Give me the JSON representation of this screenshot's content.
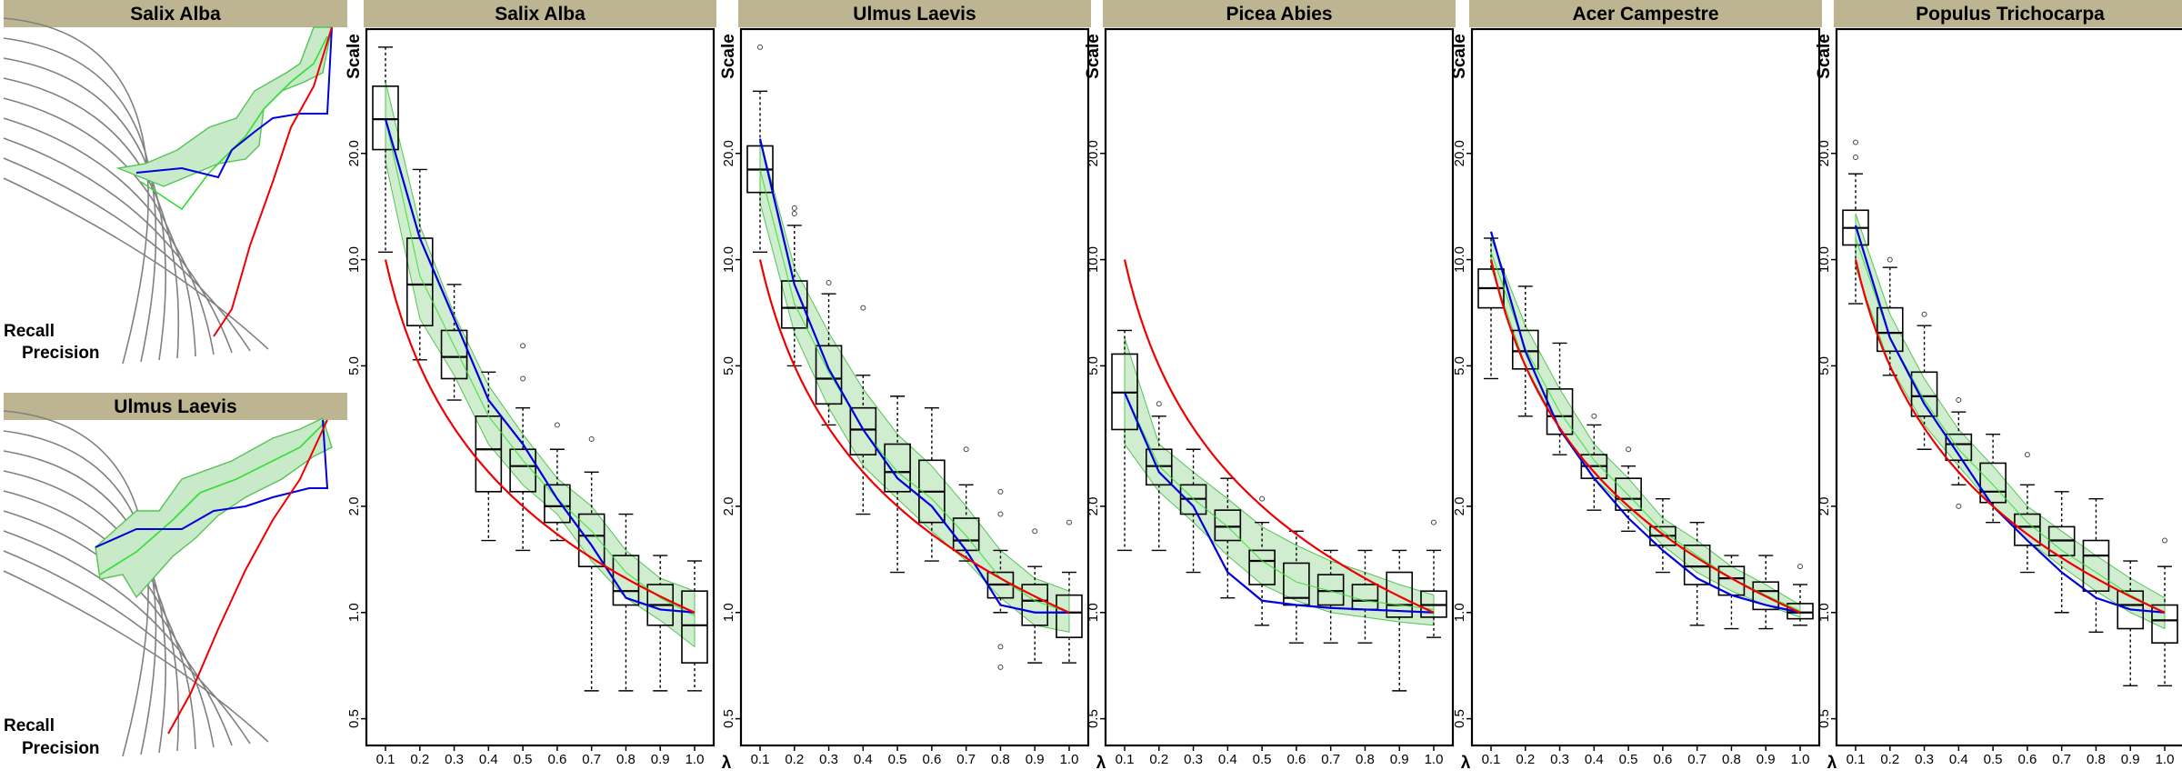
{
  "left_panels": [
    {
      "title": "Salix Alba",
      "ylabel": "Recall",
      "xlabel": "Precision"
    },
    {
      "title": "Ulmus Laevis",
      "ylabel": "Recall",
      "xlabel": "Precision"
    }
  ],
  "colors": {
    "header": "#bdb591",
    "band": "#c8eac8",
    "band_stroke": "#55c455",
    "inner_line": "#33dd33",
    "blue": "#0000dd",
    "red": "#ee0000",
    "grey": "#808080",
    "box": "#000000"
  },
  "chart_data": [
    {
      "type": "box",
      "title": "Salix Alba",
      "ylabel": "Scale",
      "xlabel": "λ",
      "categories": [
        "0.1",
        "0.2",
        "0.3",
        "0.4",
        "0.5",
        "0.6",
        "0.7",
        "0.8",
        "0.9",
        "1.0"
      ],
      "yscale": "log",
      "ylim": [
        0.42,
        45
      ],
      "yticks": [
        "0.5",
        "1.0",
        "2.0",
        "5.0",
        "10.0",
        "20.0"
      ],
      "boxes": [
        {
          "whislo": 10.5,
          "q1": 20.5,
          "med": 25,
          "q3": 31,
          "whishi": 40,
          "fliers": []
        },
        {
          "whislo": 5.2,
          "q1": 6.5,
          "med": 8.5,
          "q3": 11.5,
          "whishi": 18,
          "fliers": []
        },
        {
          "whislo": 4.0,
          "q1": 4.6,
          "med": 5.3,
          "q3": 6.3,
          "whishi": 8.5,
          "fliers": []
        },
        {
          "whislo": 1.6,
          "q1": 2.2,
          "med": 2.9,
          "q3": 3.6,
          "whishi": 4.8,
          "fliers": []
        },
        {
          "whislo": 1.5,
          "q1": 2.2,
          "med": 2.6,
          "q3": 2.9,
          "whishi": 3.8,
          "fliers": [
            4.6,
            5.7
          ]
        },
        {
          "whislo": 1.6,
          "q1": 1.8,
          "med": 2.0,
          "q3": 2.3,
          "whishi": 2.9,
          "fliers": [
            3.4
          ]
        },
        {
          "whislo": 0.6,
          "q1": 1.35,
          "med": 1.65,
          "q3": 1.9,
          "whishi": 2.5,
          "fliers": [
            3.1
          ]
        },
        {
          "whislo": 0.6,
          "q1": 1.05,
          "med": 1.15,
          "q3": 1.45,
          "whishi": 1.9,
          "fliers": []
        },
        {
          "whislo": 0.6,
          "q1": 0.92,
          "med": 1.05,
          "q3": 1.2,
          "whishi": 1.45,
          "fliers": []
        },
        {
          "whislo": 0.6,
          "q1": 0.72,
          "med": 0.92,
          "q3": 1.15,
          "whishi": 1.4,
          "fliers": []
        }
      ],
      "band_lower": [
        19,
        6.8,
        4.7,
        3.0,
        2.3,
        1.9,
        1.4,
        1.1,
        0.95,
        0.8
      ],
      "band_upper": [
        32,
        12.5,
        7.0,
        4.4,
        3.2,
        2.4,
        2.0,
        1.5,
        1.25,
        1.15
      ],
      "green_line": [
        25,
        9.0,
        5.7,
        3.6,
        2.7,
        2.1,
        1.7,
        1.3,
        1.1,
        0.98
      ],
      "blue_line": [
        25,
        11.5,
        6.8,
        4.0,
        3.0,
        2.1,
        1.55,
        1.1,
        1.02,
        1.0
      ],
      "red_curve": {
        "from": 0.1,
        "to": 1.0,
        "value_at_start": 10.0,
        "value_at_end": 1.0
      }
    },
    {
      "type": "box",
      "title": "Ulmus Laevis",
      "ylabel": "Scale",
      "xlabel": "λ",
      "categories": [
        "0.1",
        "0.2",
        "0.3",
        "0.4",
        "0.5",
        "0.6",
        "0.7",
        "0.8",
        "0.9",
        "1.0"
      ],
      "yscale": "log",
      "ylim": [
        0.42,
        45
      ],
      "yticks": [
        "0.5",
        "1.0",
        "2.0",
        "5.0",
        "10.0",
        "20.0"
      ],
      "boxes": [
        {
          "whislo": 10.5,
          "q1": 15.5,
          "med": 18,
          "q3": 21,
          "whishi": 30,
          "fliers": [
            40
          ]
        },
        {
          "whislo": 5.0,
          "q1": 6.4,
          "med": 7.3,
          "q3": 8.7,
          "whishi": 12.5,
          "fliers": [
            13.5,
            14.0
          ]
        },
        {
          "whislo": 3.4,
          "q1": 3.9,
          "med": 4.6,
          "q3": 5.7,
          "whishi": 8.0,
          "fliers": [
            8.6
          ]
        },
        {
          "whislo": 1.9,
          "q1": 2.8,
          "med": 3.3,
          "q3": 3.8,
          "whishi": 4.7,
          "fliers": [
            7.3
          ]
        },
        {
          "whislo": 1.3,
          "q1": 2.2,
          "med": 2.5,
          "q3": 3.0,
          "whishi": 4.1,
          "fliers": []
        },
        {
          "whislo": 1.4,
          "q1": 1.8,
          "med": 2.2,
          "q3": 2.7,
          "whishi": 3.8,
          "fliers": []
        },
        {
          "whislo": 1.4,
          "q1": 1.5,
          "med": 1.6,
          "q3": 1.85,
          "whishi": 2.3,
          "fliers": [
            2.9
          ]
        },
        {
          "whislo": 1.0,
          "q1": 1.1,
          "med": 1.2,
          "q3": 1.3,
          "whishi": 1.5,
          "fliers": [
            0.7,
            0.8,
            1.9,
            2.2
          ]
        },
        {
          "whislo": 0.72,
          "q1": 0.92,
          "med": 1.08,
          "q3": 1.2,
          "whishi": 1.35,
          "fliers": [
            1.7
          ]
        },
        {
          "whislo": 0.72,
          "q1": 0.85,
          "med": 1.0,
          "q3": 1.12,
          "whishi": 1.3,
          "fliers": [
            1.8
          ]
        }
      ],
      "band_lower": [
        14.5,
        6.2,
        3.8,
        2.6,
        2.1,
        1.7,
        1.4,
        1.1,
        0.92,
        0.88
      ],
      "band_upper": [
        22,
        9.5,
        6.2,
        4.3,
        3.2,
        2.6,
        2.0,
        1.5,
        1.25,
        1.15
      ],
      "green_line": [
        18,
        7.5,
        4.8,
        3.3,
        2.5,
        2.1,
        1.65,
        1.25,
        1.08,
        1.0
      ],
      "blue_line": [
        22,
        8.5,
        4.9,
        3.3,
        2.4,
        2.0,
        1.5,
        1.05,
        1.0,
        1.0
      ],
      "red_curve": {
        "from": 0.1,
        "to": 1.0,
        "value_at_start": 10.0,
        "value_at_end": 1.0
      }
    },
    {
      "type": "box",
      "title": "Picea Abies",
      "ylabel": "Scale",
      "xlabel": "λ",
      "categories": [
        "0.1",
        "0.2",
        "0.3",
        "0.4",
        "0.5",
        "0.6",
        "0.7",
        "0.8",
        "0.9",
        "1.0"
      ],
      "yscale": "log",
      "ylim": [
        0.42,
        45
      ],
      "yticks": [
        "0.5",
        "1.0",
        "2.0",
        "5.0",
        "10.0",
        "20.0"
      ],
      "boxes": [
        {
          "whislo": 1.5,
          "q1": 3.3,
          "med": 4.2,
          "q3": 5.4,
          "whishi": 6.3,
          "fliers": []
        },
        {
          "whislo": 1.5,
          "q1": 2.3,
          "med": 2.6,
          "q3": 2.9,
          "whishi": 3.6,
          "fliers": [
            3.9
          ]
        },
        {
          "whislo": 1.3,
          "q1": 1.9,
          "med": 2.1,
          "q3": 2.3,
          "whishi": 2.9,
          "fliers": []
        },
        {
          "whislo": 1.1,
          "q1": 1.6,
          "med": 1.75,
          "q3": 1.95,
          "whishi": 2.4,
          "fliers": []
        },
        {
          "whislo": 0.92,
          "q1": 1.2,
          "med": 1.4,
          "q3": 1.5,
          "whishi": 1.8,
          "fliers": [
            2.1
          ]
        },
        {
          "whislo": 0.82,
          "q1": 1.05,
          "med": 1.1,
          "q3": 1.38,
          "whishi": 1.7,
          "fliers": []
        },
        {
          "whislo": 0.82,
          "q1": 1.05,
          "med": 1.15,
          "q3": 1.28,
          "whishi": 1.5,
          "fliers": []
        },
        {
          "whislo": 0.82,
          "q1": 1.02,
          "med": 1.08,
          "q3": 1.2,
          "whishi": 1.5,
          "fliers": []
        },
        {
          "whislo": 0.6,
          "q1": 0.97,
          "med": 1.05,
          "q3": 1.3,
          "whishi": 1.5,
          "fliers": []
        },
        {
          "whislo": 0.85,
          "q1": 0.97,
          "med": 1.05,
          "q3": 1.15,
          "whishi": 1.5,
          "fliers": [
            1.8
          ]
        }
      ],
      "band_lower": [
        3.0,
        2.2,
        1.8,
        1.45,
        1.2,
        1.08,
        1.0,
        0.97,
        0.94,
        0.92
      ],
      "band_upper": [
        6.0,
        3.0,
        2.5,
        2.1,
        1.75,
        1.55,
        1.4,
        1.3,
        1.2,
        1.12
      ],
      "green_line": [
        4.2,
        2.6,
        2.1,
        1.75,
        1.4,
        1.22,
        1.15,
        1.08,
        1.05,
        1.02
      ],
      "blue_line": [
        4.2,
        2.5,
        2.0,
        1.3,
        1.08,
        1.05,
        1.03,
        1.02,
        1.01,
        1.0
      ],
      "red_curve": {
        "from": 0.1,
        "to": 1.0,
        "value_at_start": 10.0,
        "value_at_end": 1.0
      }
    },
    {
      "type": "box",
      "title": "Acer Campestre",
      "ylabel": "Scale",
      "xlabel": "λ",
      "categories": [
        "0.1",
        "0.2",
        "0.3",
        "0.4",
        "0.5",
        "0.6",
        "0.7",
        "0.8",
        "0.9",
        "1.0"
      ],
      "yscale": "log",
      "ylim": [
        0.42,
        45
      ],
      "yticks": [
        "0.5",
        "1.0",
        "2.0",
        "5.0",
        "10.0",
        "20.0"
      ],
      "boxes": [
        {
          "whislo": 4.6,
          "q1": 7.3,
          "med": 8.3,
          "q3": 9.4,
          "whishi": 11.5,
          "fliers": []
        },
        {
          "whislo": 3.6,
          "q1": 4.9,
          "med": 5.5,
          "q3": 6.3,
          "whishi": 8.4,
          "fliers": []
        },
        {
          "whislo": 2.8,
          "q1": 3.2,
          "med": 3.6,
          "q3": 4.3,
          "whishi": 5.8,
          "fliers": []
        },
        {
          "whislo": 1.95,
          "q1": 2.4,
          "med": 2.6,
          "q3": 2.8,
          "whishi": 3.4,
          "fliers": [
            3.6
          ]
        },
        {
          "whislo": 1.7,
          "q1": 1.95,
          "med": 2.1,
          "q3": 2.4,
          "whishi": 2.6,
          "fliers": [
            2.9
          ]
        },
        {
          "whislo": 1.3,
          "q1": 1.55,
          "med": 1.65,
          "q3": 1.75,
          "whishi": 2.1,
          "fliers": []
        },
        {
          "whislo": 0.92,
          "q1": 1.2,
          "med": 1.35,
          "q3": 1.55,
          "whishi": 1.8,
          "fliers": []
        },
        {
          "whislo": 0.9,
          "q1": 1.12,
          "med": 1.25,
          "q3": 1.35,
          "whishi": 1.45,
          "fliers": []
        },
        {
          "whislo": 0.9,
          "q1": 1.02,
          "med": 1.15,
          "q3": 1.22,
          "whishi": 1.45,
          "fliers": []
        },
        {
          "whislo": 0.92,
          "q1": 0.96,
          "med": 1.0,
          "q3": 1.06,
          "whishi": 1.2,
          "fliers": [
            1.35
          ]
        }
      ],
      "band_lower": [
        9.5,
        5.0,
        3.3,
        2.4,
        1.95,
        1.55,
        1.3,
        1.15,
        1.05,
        0.97
      ],
      "band_upper": [
        11.5,
        6.5,
        4.3,
        3.0,
        2.4,
        1.85,
        1.6,
        1.35,
        1.2,
        1.05
      ],
      "green_line": [
        10.5,
        5.6,
        3.7,
        2.7,
        2.15,
        1.7,
        1.45,
        1.25,
        1.12,
        1.01
      ],
      "blue_line": [
        12,
        5.5,
        3.3,
        2.4,
        1.85,
        1.5,
        1.25,
        1.12,
        1.05,
        1.0
      ],
      "red_curve": {
        "from": 0.1,
        "to": 1.0,
        "value_at_start": 10.0,
        "value_at_end": 1.0
      }
    },
    {
      "type": "box",
      "title": "Populus Trichocarpa",
      "ylabel": "Scale",
      "xlabel": "λ",
      "categories": [
        "0.1",
        "0.2",
        "0.3",
        "0.4",
        "0.5",
        "0.6",
        "0.7",
        "0.8",
        "0.9",
        "1.0"
      ],
      "yscale": "log",
      "ylim": [
        0.42,
        45
      ],
      "yticks": [
        "0.5",
        "1.0",
        "2.0",
        "5.0",
        "10.0",
        "20.0"
      ],
      "boxes": [
        {
          "whislo": 7.5,
          "q1": 11.0,
          "med": 12.3,
          "q3": 13.8,
          "whishi": 17.5,
          "fliers": [
            19.5,
            21.5
          ]
        },
        {
          "whislo": 4.7,
          "q1": 5.5,
          "med": 6.2,
          "q3": 7.3,
          "whishi": 9.5,
          "fliers": [
            10.0
          ]
        },
        {
          "whislo": 2.9,
          "q1": 3.6,
          "med": 4.1,
          "q3": 4.8,
          "whishi": 6.5,
          "fliers": [
            7.0
          ]
        },
        {
          "whislo": 2.3,
          "q1": 2.7,
          "med": 3.0,
          "q3": 3.2,
          "whishi": 3.7,
          "fliers": [
            2.0,
            4.0
          ]
        },
        {
          "whislo": 1.8,
          "q1": 2.05,
          "med": 2.2,
          "q3": 2.65,
          "whishi": 3.2,
          "fliers": []
        },
        {
          "whislo": 1.3,
          "q1": 1.55,
          "med": 1.75,
          "q3": 1.9,
          "whishi": 2.3,
          "fliers": [
            2.8
          ]
        },
        {
          "whislo": 1.0,
          "q1": 1.45,
          "med": 1.6,
          "q3": 1.75,
          "whishi": 2.2,
          "fliers": []
        },
        {
          "whislo": 0.88,
          "q1": 1.15,
          "med": 1.45,
          "q3": 1.6,
          "whishi": 2.1,
          "fliers": []
        },
        {
          "whislo": 0.62,
          "q1": 0.9,
          "med": 1.05,
          "q3": 1.15,
          "whishi": 1.4,
          "fliers": []
        },
        {
          "whislo": 0.62,
          "q1": 0.82,
          "med": 0.95,
          "q3": 1.05,
          "whishi": 1.35,
          "fliers": [
            1.6
          ]
        }
      ],
      "band_lower": [
        9.5,
        5.0,
        3.4,
        2.6,
        2.0,
        1.6,
        1.35,
        1.15,
        1.0,
        0.9
      ],
      "band_upper": [
        13.5,
        7.0,
        4.6,
        3.3,
        2.6,
        2.0,
        1.7,
        1.45,
        1.25,
        1.1
      ],
      "green_line": [
        11.5,
        6.0,
        4.0,
        2.9,
        2.3,
        1.8,
        1.5,
        1.3,
        1.12,
        1.0
      ],
      "blue_line": [
        12.5,
        6.0,
        3.9,
        2.8,
        2.0,
        1.6,
        1.3,
        1.1,
        1.02,
        1.0
      ],
      "red_curve": {
        "from": 0.1,
        "to": 1.0,
        "value_at_start": 10.0,
        "value_at_end": 1.0
      }
    }
  ]
}
